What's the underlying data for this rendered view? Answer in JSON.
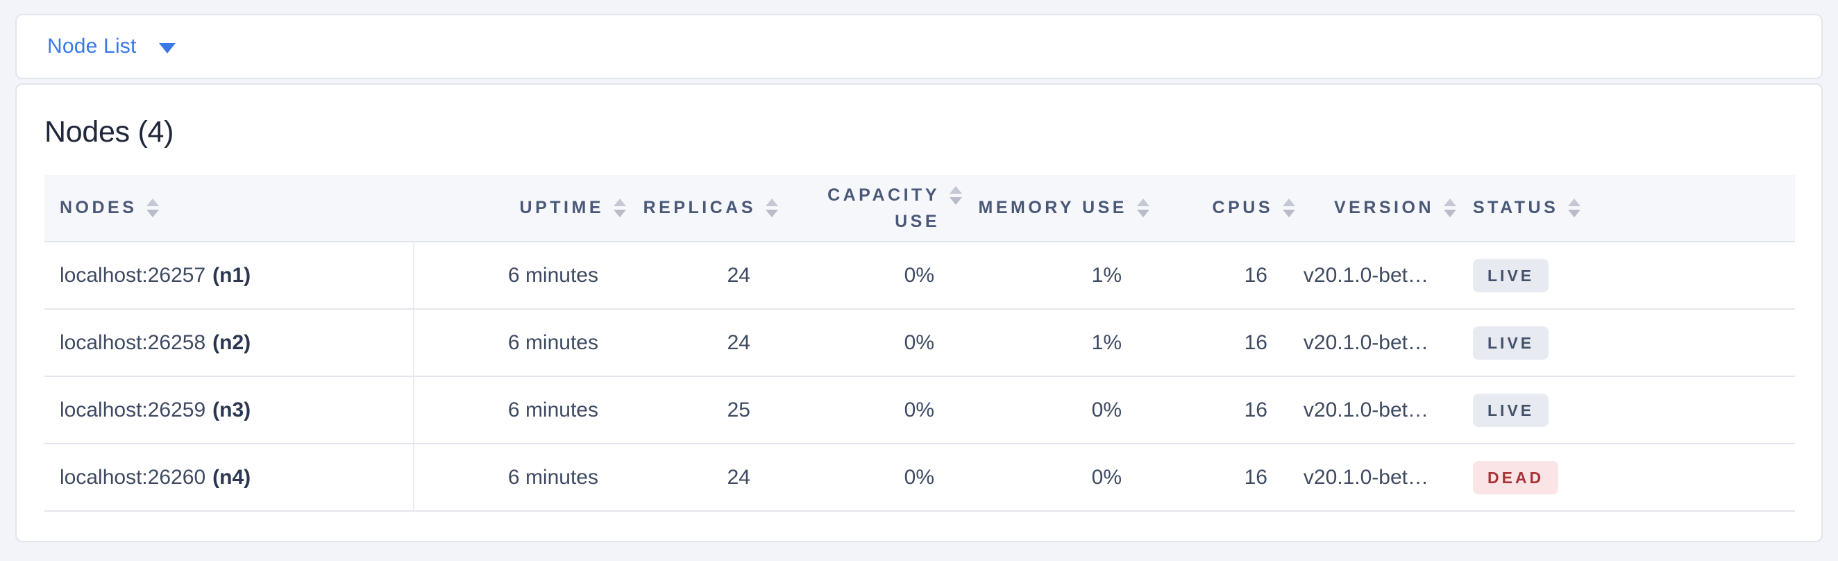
{
  "toolbar": {
    "dropdown_label": "Node List",
    "dropdown_icon": "caret-down-icon"
  },
  "panel": {
    "title": "Nodes (4)"
  },
  "table": {
    "columns": [
      {
        "key": "nodes",
        "label": "NODES",
        "align": "left",
        "sortable": true,
        "two_line": false
      },
      {
        "key": "uptime",
        "label": "UPTIME",
        "align": "right",
        "sortable": true,
        "two_line": false
      },
      {
        "key": "replicas",
        "label": "REPLICAS",
        "align": "right",
        "sortable": true,
        "two_line": false
      },
      {
        "key": "capacity_use",
        "label": "CAPACITY USE",
        "align": "right",
        "sortable": true,
        "two_line": true
      },
      {
        "key": "memory_use",
        "label": "MEMORY USE",
        "align": "right",
        "sortable": true,
        "two_line": false
      },
      {
        "key": "cpus",
        "label": "CPUS",
        "align": "right",
        "sortable": true,
        "two_line": false
      },
      {
        "key": "version",
        "label": "VERSION",
        "align": "right",
        "sortable": true,
        "two_line": false
      },
      {
        "key": "status",
        "label": "STATUS",
        "align": "left",
        "sortable": true,
        "two_line": false
      }
    ],
    "rows": [
      {
        "nodes_address": "localhost:26257",
        "nodes_id": "(n1)",
        "uptime": "6 minutes",
        "replicas": "24",
        "capacity_use": "0%",
        "memory_use": "1%",
        "cpus": "16",
        "version": "v20.1.0-bet…",
        "status": "LIVE"
      },
      {
        "nodes_address": "localhost:26258",
        "nodes_id": "(n2)",
        "uptime": "6 minutes",
        "replicas": "24",
        "capacity_use": "0%",
        "memory_use": "1%",
        "cpus": "16",
        "version": "v20.1.0-bet…",
        "status": "LIVE"
      },
      {
        "nodes_address": "localhost:26259",
        "nodes_id": "(n3)",
        "uptime": "6 minutes",
        "replicas": "25",
        "capacity_use": "0%",
        "memory_use": "0%",
        "cpus": "16",
        "version": "v20.1.0-bet…",
        "status": "LIVE"
      },
      {
        "nodes_address": "localhost:26260",
        "nodes_id": "(n4)",
        "uptime": "6 minutes",
        "replicas": "24",
        "capacity_use": "0%",
        "memory_use": "0%",
        "cpus": "16",
        "version": "v20.1.0-bet…",
        "status": "DEAD"
      }
    ],
    "sort_icon": "sort-arrows-icon"
  },
  "colors": {
    "page_background": "#f2f4f9",
    "accent_blue": "#3a78e8",
    "header_text": "#4a5878",
    "body_text": "#3e4a61",
    "live_badge_bg": "#e8eaf1",
    "live_badge_text": "#44506a",
    "dead_badge_bg": "#fae4e6",
    "dead_badge_text": "#a93438"
  }
}
